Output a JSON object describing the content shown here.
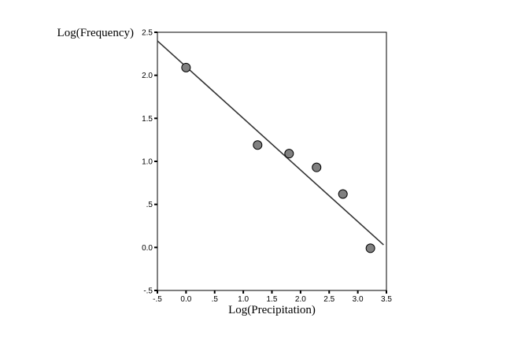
{
  "chart_data": {
    "type": "scatter",
    "title": "",
    "xlabel": "Log(Precipitation)",
    "ylabel": "Log(Frequency)",
    "xlim": [
      -0.5,
      3.5
    ],
    "ylim": [
      -0.5,
      2.5
    ],
    "x_ticks": [
      -0.5,
      0.0,
      0.5,
      1.0,
      1.5,
      2.0,
      2.5,
      3.0,
      3.5
    ],
    "x_tick_labels": [
      "-.5",
      "0.0",
      ".5",
      "1.0",
      "1.5",
      "2.0",
      "2.5",
      "3.0",
      "3.5"
    ],
    "y_ticks": [
      -0.5,
      0.0,
      0.5,
      1.0,
      1.5,
      2.0,
      2.5
    ],
    "y_tick_labels": [
      "-.5",
      "0.0",
      ".5",
      "1.0",
      "1.5",
      "2.0",
      "2.5"
    ],
    "grid": false,
    "points": [
      {
        "x": 0.0,
        "y": 2.09
      },
      {
        "x": 1.25,
        "y": 1.19
      },
      {
        "x": 1.8,
        "y": 1.09
      },
      {
        "x": 2.28,
        "y": 0.93
      },
      {
        "x": 2.74,
        "y": 0.62
      },
      {
        "x": 3.22,
        "y": -0.01
      }
    ],
    "fit_line": {
      "x0": -0.5,
      "y0": 2.4,
      "x1": 3.45,
      "y1": 0.03
    },
    "colors": {
      "point_fill": "#808080",
      "point_stroke": "#000000",
      "line": "#333333",
      "frame": "#000000"
    }
  }
}
